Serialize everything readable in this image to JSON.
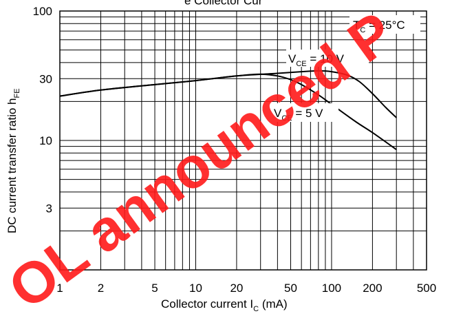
{
  "chart_data": {
    "type": "line",
    "title": "",
    "x_scale": "log",
    "y_scale": "log",
    "xlim": [
      1,
      500
    ],
    "ylim": [
      1,
      100
    ],
    "xlabel": {
      "main": "Collector current  I",
      "sub": "C",
      "unit": "  (mA)"
    },
    "ylabel": {
      "main": "DC current transfer ratio  h",
      "sub": "FE"
    },
    "x_ticks": [
      1,
      2,
      5,
      10,
      20,
      50,
      100,
      200,
      500
    ],
    "x_tick_labels": [
      "1",
      "2",
      "5",
      "10",
      "20",
      "50",
      "100",
      "200",
      "500"
    ],
    "y_ticks": [
      3,
      10,
      30,
      100
    ],
    "y_tick_labels": [
      "3",
      "10",
      "30",
      "100"
    ],
    "grid": true,
    "series": [
      {
        "name": {
          "main": "V",
          "sub": "CE",
          "rest": " = 10 V"
        },
        "x": [
          1,
          2,
          5,
          10,
          20,
          40,
          60,
          80,
          100,
          130,
          160,
          200,
          250,
          300
        ],
        "y": [
          22,
          24.5,
          27,
          29,
          31.5,
          33,
          34,
          34.5,
          34,
          32,
          28.5,
          23,
          18,
          15
        ]
      },
      {
        "name": {
          "main": "V",
          "sub": "CE",
          "rest": " = 5 V"
        },
        "x": [
          1,
          2,
          5,
          10,
          20,
          30,
          40,
          50,
          60,
          80,
          100,
          150,
          200,
          300
        ],
        "y": [
          22,
          24.5,
          27,
          29,
          31.5,
          32.5,
          31.5,
          29.5,
          27,
          22.5,
          19,
          14,
          11.5,
          8.5
        ]
      }
    ],
    "annotations": [
      {
        "main": "T",
        "sub": "C",
        "rest": " = 25°C"
      }
    ],
    "watermark": "OL announced P",
    "partial_title": "e Collector Cur"
  }
}
